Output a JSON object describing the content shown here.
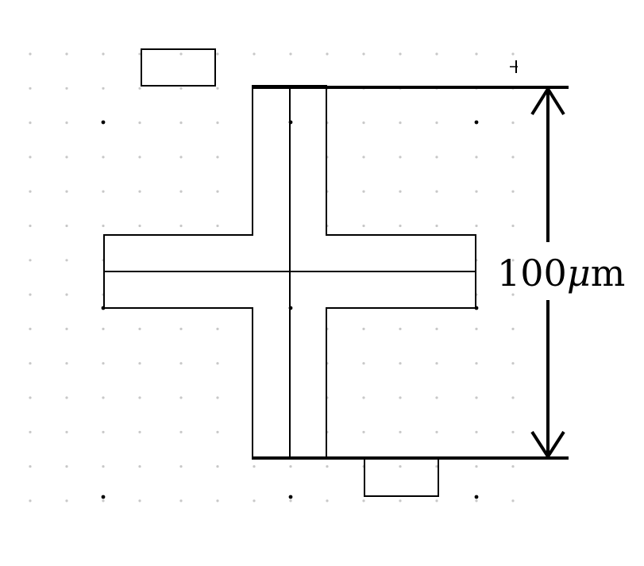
{
  "dimension": {
    "value": "100",
    "unit_symbol": "μ",
    "unit_suffix": "m"
  },
  "colors": {
    "ink": "#000000",
    "grid_dot": "#c8c8c8",
    "grid_dot_dark": "#000000",
    "background": "#ffffff"
  }
}
